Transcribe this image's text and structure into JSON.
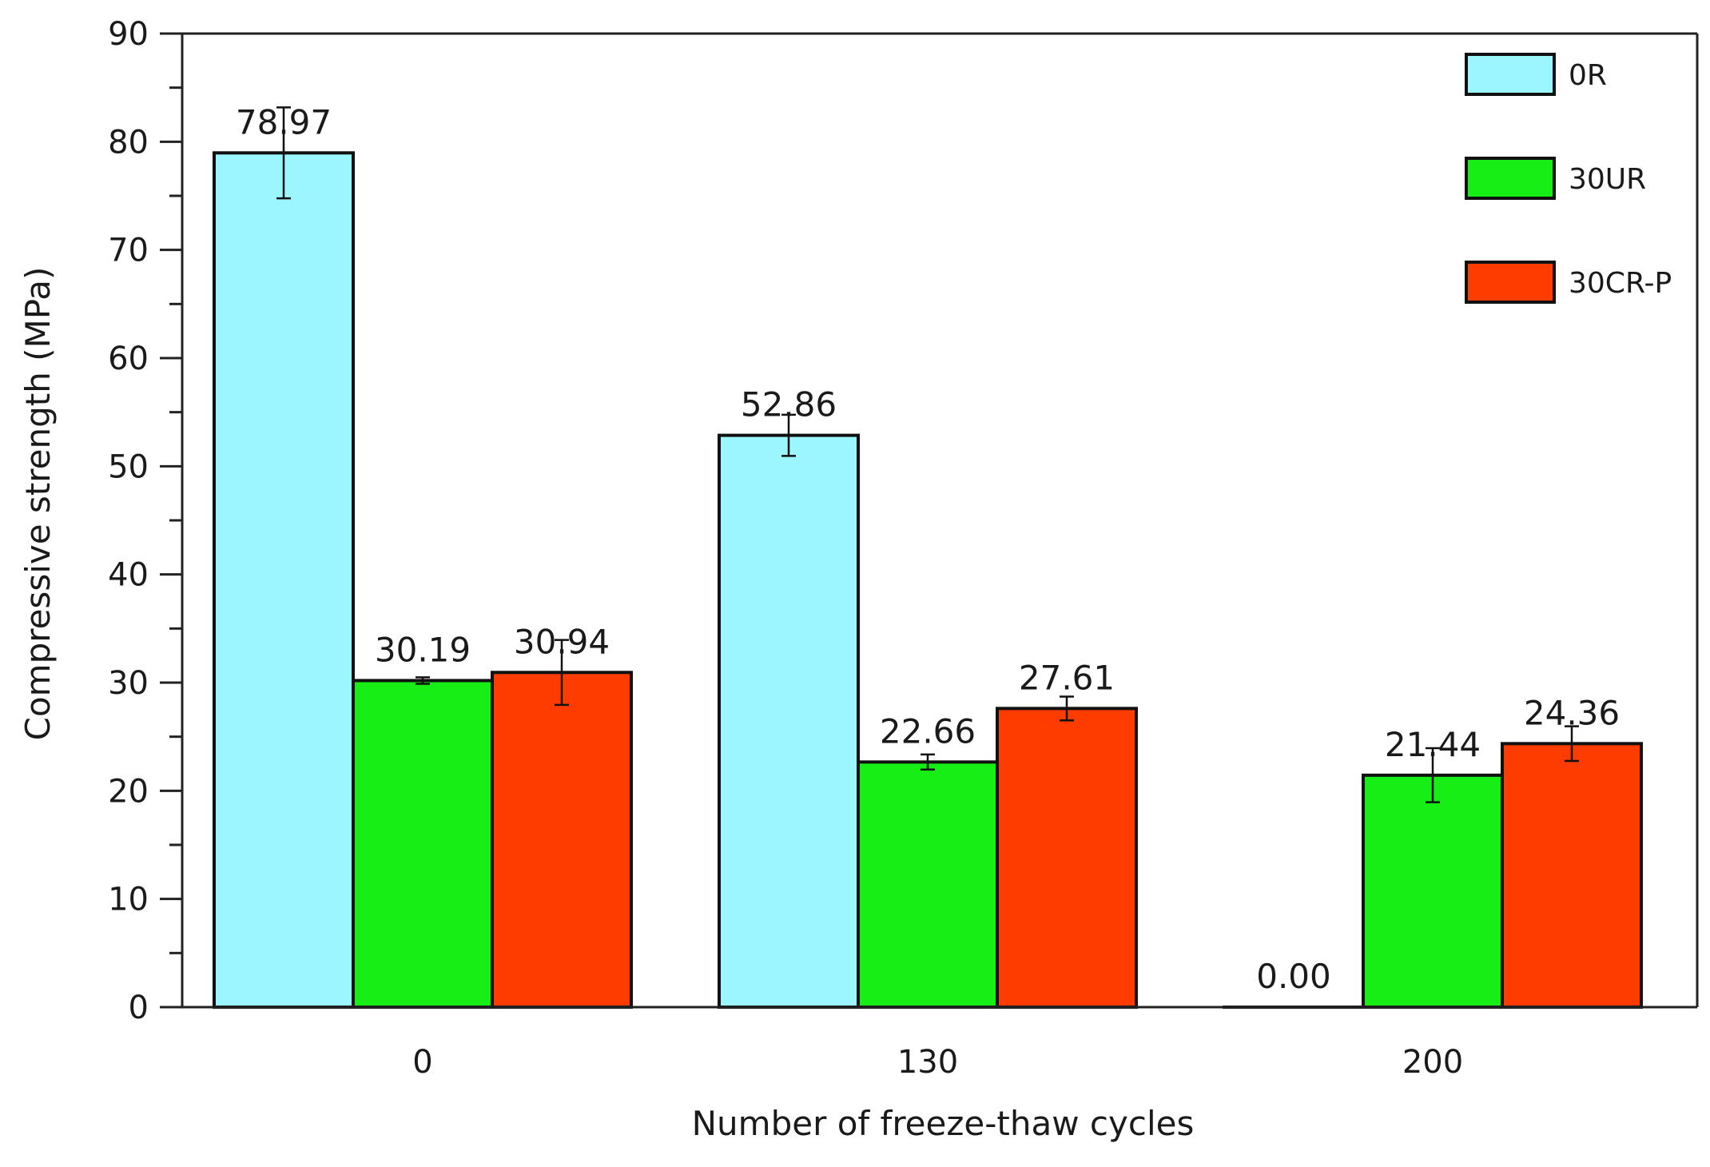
{
  "chart_data": {
    "type": "bar",
    "title": "",
    "xlabel": "Number of freeze-thaw cycles",
    "ylabel": "Compressive strength (MPa)",
    "categories": [
      "0",
      "130",
      "200"
    ],
    "ylim": [
      0,
      90
    ],
    "yticks": [
      0,
      10,
      20,
      30,
      40,
      50,
      60,
      70,
      80,
      90
    ],
    "grid": false,
    "legend_position": "top-right",
    "series": [
      {
        "name": "0R",
        "color": "#9bf6ff",
        "values": [
          78.97,
          52.86,
          0.0
        ],
        "labels": [
          "78.97",
          "52.86",
          "0.00"
        ],
        "errors": [
          4.2,
          1.9,
          0
        ]
      },
      {
        "name": "30UR",
        "color": "#16ee16",
        "values": [
          30.19,
          22.66,
          21.44
        ],
        "labels": [
          "30.19",
          "22.66",
          "21.44"
        ],
        "errors": [
          0.3,
          0.7,
          2.5
        ]
      },
      {
        "name": "30CR-P",
        "color": "#ff3c00",
        "values": [
          30.94,
          27.61,
          24.36
        ],
        "labels": [
          "30.94",
          "27.61",
          "24.36"
        ],
        "errors": [
          3.0,
          1.1,
          1.6
        ]
      }
    ]
  }
}
